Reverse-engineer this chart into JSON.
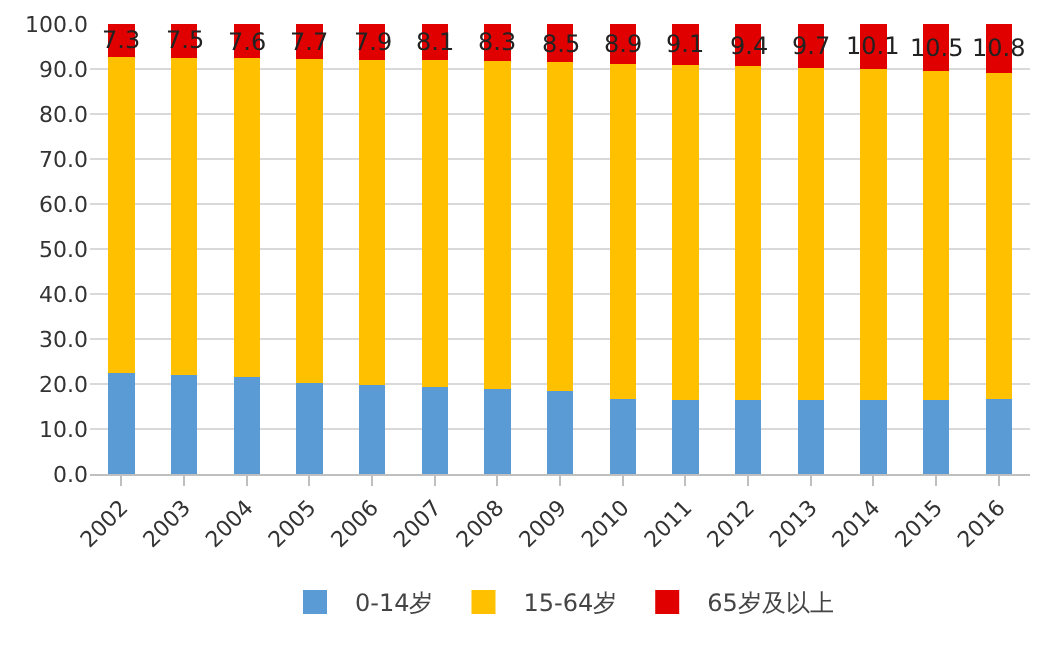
{
  "chart_data": {
    "type": "bar",
    "stacked": true,
    "categories": [
      "2002",
      "2003",
      "2004",
      "2005",
      "2006",
      "2007",
      "2008",
      "2009",
      "2010",
      "2011",
      "2012",
      "2013",
      "2014",
      "2015",
      "2016"
    ],
    "series": [
      {
        "name": "0-14岁",
        "color": "#5b9bd5",
        "values": [
          22.4,
          22.0,
          21.5,
          20.3,
          19.8,
          19.4,
          19.0,
          18.5,
          16.6,
          16.5,
          16.5,
          16.4,
          16.5,
          16.5,
          16.7
        ]
      },
      {
        "name": "15-64岁",
        "color": "#ffc000",
        "values": [
          70.3,
          70.5,
          70.9,
          72.0,
          72.3,
          72.5,
          72.7,
          73.0,
          74.5,
          74.4,
          74.1,
          73.9,
          73.4,
          73.0,
          72.5
        ]
      },
      {
        "name": "65岁及以上",
        "color": "#e00000",
        "values": [
          7.3,
          7.5,
          7.6,
          7.7,
          7.9,
          8.1,
          8.3,
          8.5,
          8.9,
          9.1,
          9.4,
          9.7,
          10.1,
          10.5,
          10.8
        ],
        "value_labels": [
          "7.3",
          "7.5",
          "7.6",
          "7.7",
          "7.9",
          "8.1",
          "8.3",
          "8.5",
          "8.9",
          "9.1",
          "9.4",
          "9.7",
          "10.1",
          "10.5",
          "10.8"
        ]
      }
    ],
    "ylim": [
      0,
      100
    ],
    "yticks": [
      {
        "value": 0,
        "label": "0.0"
      },
      {
        "value": 10,
        "label": "10.0"
      },
      {
        "value": 20,
        "label": "20.0"
      },
      {
        "value": 30,
        "label": "30.0"
      },
      {
        "value": 40,
        "label": "40.0"
      },
      {
        "value": 50,
        "label": "50.0"
      },
      {
        "value": 60,
        "label": "60.0"
      },
      {
        "value": 70,
        "label": "70.0"
      },
      {
        "value": 80,
        "label": "80.0"
      },
      {
        "value": 90,
        "label": "90.0"
      },
      {
        "value": 100,
        "label": "100.0"
      }
    ],
    "grid": "y",
    "legend": "bottom"
  }
}
